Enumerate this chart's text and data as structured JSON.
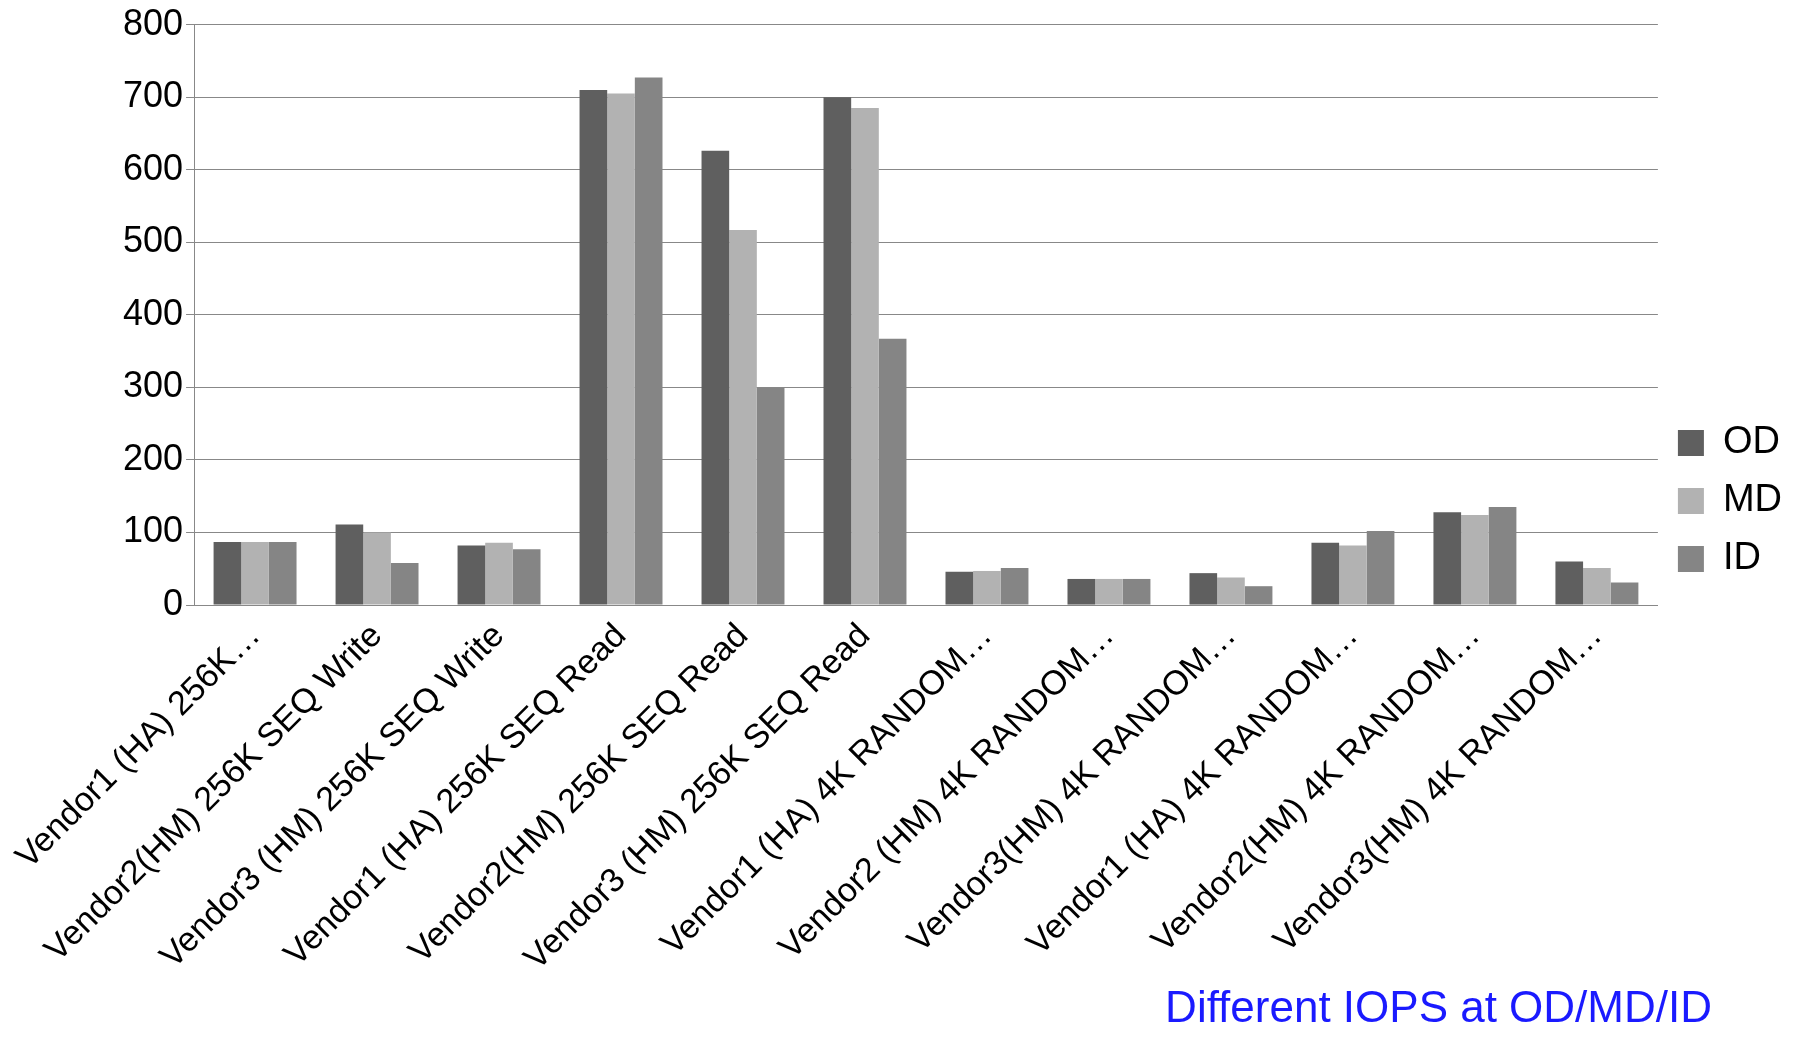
{
  "chart_data": {
    "type": "bar",
    "categories": [
      "Vendor1 (HA) 256K…",
      "Vendor2(HM) 256K SEQ Write",
      "Vendor3 (HM) 256K SEQ Write",
      "Vendor1 (HA) 256K SEQ Read",
      "Vendor2(HM) 256K SEQ Read",
      "Vendor3 (HM) 256K SEQ Read",
      "Vendor1 (HA) 4K RANDOM…",
      "Vendor2 (HM) 4K RANDOM…",
      "Vendor3(HM) 4K RANDOM…",
      "Vendor1 (HA) 4K RANDOM…",
      "Vendor2(HM) 4K RANDOM…",
      "Vendor3(HM) 4K RANDOM…"
    ],
    "series": [
      {
        "name": "OD",
        "color": "#5f5f5f",
        "values": [
          87,
          111,
          82,
          710,
          626,
          700,
          46,
          36,
          44,
          86,
          128,
          60
        ]
      },
      {
        "name": "MD",
        "color": "#b2b2b2",
        "values": [
          87,
          100,
          86,
          705,
          517,
          685,
          47,
          36,
          38,
          82,
          124,
          51
        ]
      },
      {
        "name": "ID",
        "color": "#858585",
        "values": [
          87,
          58,
          77,
          727,
          300,
          367,
          51,
          36,
          26,
          102,
          135,
          31
        ]
      }
    ],
    "ylim": [
      0,
      800
    ],
    "yticks": [
      0,
      100,
      200,
      300,
      400,
      500,
      600,
      700,
      800
    ],
    "grid": "y",
    "legend": "right",
    "annotations": [
      "Different IOPS at OD/MD/ID"
    ]
  }
}
